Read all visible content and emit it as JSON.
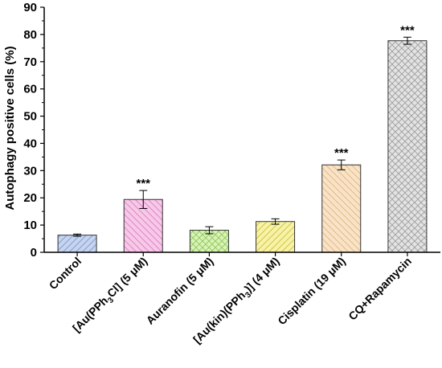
{
  "chart_data": {
    "type": "bar",
    "title": "",
    "xlabel": "",
    "ylabel": "Autophagy positive cells (%)",
    "ylim": [
      0,
      90
    ],
    "yticks": [
      0,
      10,
      20,
      30,
      40,
      50,
      60,
      70,
      80,
      90
    ],
    "grid": false,
    "legend": "none",
    "categories": [
      {
        "label": "Control",
        "value": 6.3,
        "error": 0.4,
        "significance": "",
        "fill": "#c6d4ef",
        "stroke": "#7b93c9",
        "pattern": "diag-left"
      },
      {
        "label": "[Au(PPh₃Cl] (5 μM)",
        "value": 19.4,
        "error": 3.3,
        "significance": "***",
        "fill": "#f7c8e8",
        "stroke": "#d87dbf",
        "pattern": "diag-right"
      },
      {
        "label": "Auranofin (5 μM)",
        "value": 8.1,
        "error": 1.3,
        "significance": "",
        "fill": "#d8f3b6",
        "stroke": "#8fc45a",
        "pattern": "cross"
      },
      {
        "label": "[Au(kin)(PPh₃)] (4 μM)",
        "value": 11.3,
        "error": 1.0,
        "significance": "",
        "fill": "#f8f2a6",
        "stroke": "#c9bd3a",
        "pattern": "diag-left"
      },
      {
        "label": "Cisplatin (19 μM)",
        "value": 32.1,
        "error": 1.8,
        "significance": "***",
        "fill": "#f9e3c7",
        "stroke": "#e0b27b",
        "pattern": "diag-right"
      },
      {
        "label": "CQ+Rapamycin",
        "value": 77.7,
        "error": 1.3,
        "significance": "***",
        "fill": "#e3e3e3",
        "stroke": "#9a9a9a",
        "pattern": "cross"
      }
    ]
  }
}
